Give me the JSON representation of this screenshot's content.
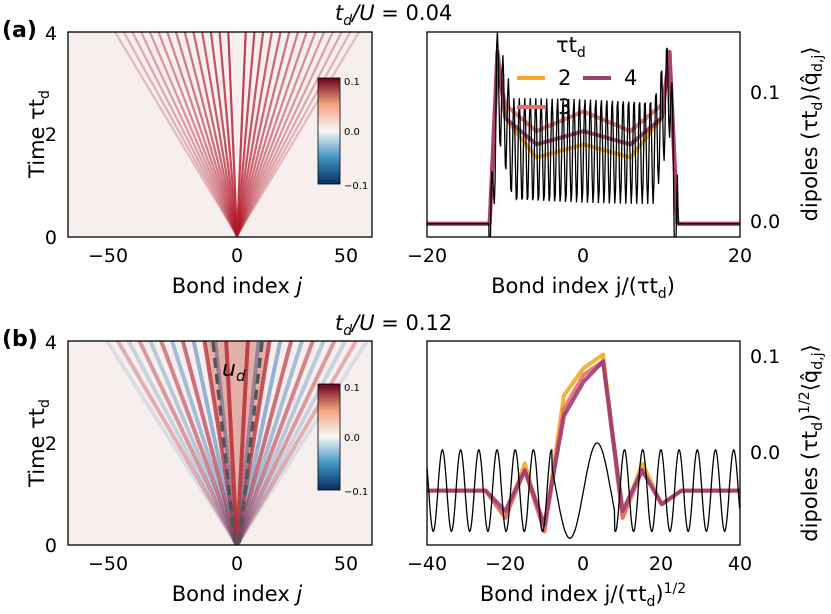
{
  "panels": {
    "a": {
      "label": "(a)",
      "title_lhs": "t",
      "title_sub": "d",
      "title_rhs": "/U = ",
      "title_value": "0.04"
    },
    "b": {
      "label": "(b)",
      "title_lhs": "t",
      "title_sub": "d",
      "title_rhs": "/U = ",
      "title_value": "0.12",
      "cone_label": "u",
      "cone_label_sub": "d"
    }
  },
  "labels": {
    "time_axis": "Time τt",
    "time_axis_sub": "d",
    "bond_axis": "Bond index ",
    "bond_axis_italic": "j",
    "a_right_xlabel": "Bond index j/(τt",
    "a_right_xlabel_sub": "d",
    "a_right_xlabel_end": ")",
    "b_right_xlabel": "Bond index j/(τt",
    "b_right_xlabel_sub": "d",
    "b_right_xlabel_end": ")",
    "b_right_xlabel_sup": "1/2",
    "a_right_ylabel": "dipoles (τt",
    "a_right_ylabel_sub": "d",
    "a_right_ylabel_rest": ")⟨q̂",
    "a_right_ylabel_sub2": "d,j",
    "a_right_ylabel_end": "⟩",
    "b_right_ylabel": "dipoles (τt",
    "b_right_ylabel_sub": "d",
    "b_right_ylabel_mid": ")",
    "b_right_ylabel_sup": "1/2",
    "b_right_ylabel_rest": "⟨q̂",
    "b_right_ylabel_sub2": "d,j",
    "b_right_ylabel_end": "⟩",
    "legend_title": "τt",
    "legend_title_sub": "d"
  },
  "colors": {
    "tau2": "#f5a623",
    "tau3": "#e0706a",
    "tau4": "#a23b72",
    "reference": "#000000",
    "cone": "#555555"
  },
  "colorbar": {
    "ticks": [
      "0.1",
      "0.0",
      "−0.1"
    ]
  },
  "chart_data": [
    {
      "type": "heatmap",
      "panel": "a-left",
      "xlabel": "Bond index j",
      "ylabel": "Time τt_d",
      "xlim": [
        -70,
        70
      ],
      "ylim": [
        0,
        4
      ],
      "xticks": [
        "−50",
        "0",
        "50"
      ],
      "yticks": [
        "0",
        "2",
        "4"
      ],
      "colorscale": "RdBu_r",
      "color_range": [
        -0.1,
        0.1
      ],
      "light_cone_half_width_at_t4": 50
    },
    {
      "type": "line",
      "panel": "a-right",
      "xlabel": "Bond index j/(τt_d)",
      "ylabel": "dipoles (τt_d)⟨q̂_d,j⟩",
      "xlim": [
        -20,
        20
      ],
      "ylim": [
        -0.01,
        0.145
      ],
      "xticks": [
        "−20",
        "0",
        "20"
      ],
      "yticks": [
        "0.0",
        "0.1"
      ],
      "legend_title": "τt_d",
      "series": [
        {
          "name": "2",
          "x": [
            -20,
            -12,
            -11,
            -10,
            -6,
            0,
            6,
            10,
            11,
            12,
            20
          ],
          "values": [
            0.0,
            0.0,
            0.13,
            0.08,
            0.05,
            0.06,
            0.05,
            0.08,
            0.13,
            0.0,
            0.0
          ]
        },
        {
          "name": "3",
          "x": [
            -20,
            -12,
            -11,
            -10,
            -6,
            0,
            6,
            10,
            11,
            12,
            20
          ],
          "values": [
            0.0,
            0.0,
            0.12,
            0.09,
            0.07,
            0.085,
            0.07,
            0.09,
            0.12,
            0.0,
            0.0
          ]
        },
        {
          "name": "4",
          "x": [
            -20,
            -12,
            -11,
            -10,
            -6,
            0,
            6,
            10,
            11,
            12,
            20
          ],
          "values": [
            0.0,
            0.0,
            0.13,
            0.08,
            0.06,
            0.07,
            0.06,
            0.08,
            0.13,
            0.0,
            0.0
          ]
        }
      ]
    },
    {
      "type": "heatmap",
      "panel": "b-left",
      "xlabel": "Bond index j",
      "ylabel": "Time τt_d",
      "xlim": [
        -70,
        70
      ],
      "ylim": [
        0,
        4
      ],
      "xticks": [
        "−50",
        "0",
        "50"
      ],
      "yticks": [
        "0",
        "2",
        "4"
      ],
      "colorscale": "RdBu_r",
      "color_range": [
        -0.1,
        0.1
      ],
      "cone_velocity_label": "u_d"
    },
    {
      "type": "line",
      "panel": "b-right",
      "xlabel": "Bond index j/(τt_d)^1/2",
      "ylabel": "dipoles (τt_d)^1/2⟨q̂_d,j⟩",
      "xlim": [
        -40,
        40
      ],
      "ylim": [
        -0.04,
        0.11
      ],
      "xticks": [
        "−40",
        "−20",
        "0",
        "20",
        "40"
      ],
      "yticks": [
        "0.0",
        "0.1"
      ],
      "series": [
        {
          "name": "2",
          "x": [
            -40,
            -25,
            -20,
            -15,
            -10,
            -5,
            0,
            5,
            10,
            15,
            20,
            25,
            40
          ],
          "values": [
            0.0,
            0.0,
            -0.02,
            0.02,
            -0.03,
            0.07,
            0.09,
            0.1,
            -0.02,
            0.02,
            -0.01,
            0.0,
            0.0
          ]
        },
        {
          "name": "3",
          "x": [
            -40,
            -25,
            -20,
            -15,
            -10,
            -5,
            0,
            5,
            10,
            15,
            20,
            25,
            40
          ],
          "values": [
            0.0,
            0.0,
            -0.02,
            0.015,
            -0.03,
            0.06,
            0.085,
            0.095,
            -0.02,
            0.015,
            -0.01,
            0.0,
            0.0
          ]
        },
        {
          "name": "4",
          "x": [
            -40,
            -25,
            -20,
            -15,
            -10,
            -5,
            0,
            5,
            10,
            15,
            20,
            25,
            40
          ],
          "values": [
            0.0,
            0.0,
            -0.015,
            0.015,
            -0.025,
            0.055,
            0.08,
            0.095,
            -0.015,
            0.015,
            -0.01,
            0.0,
            0.0
          ]
        }
      ]
    }
  ]
}
